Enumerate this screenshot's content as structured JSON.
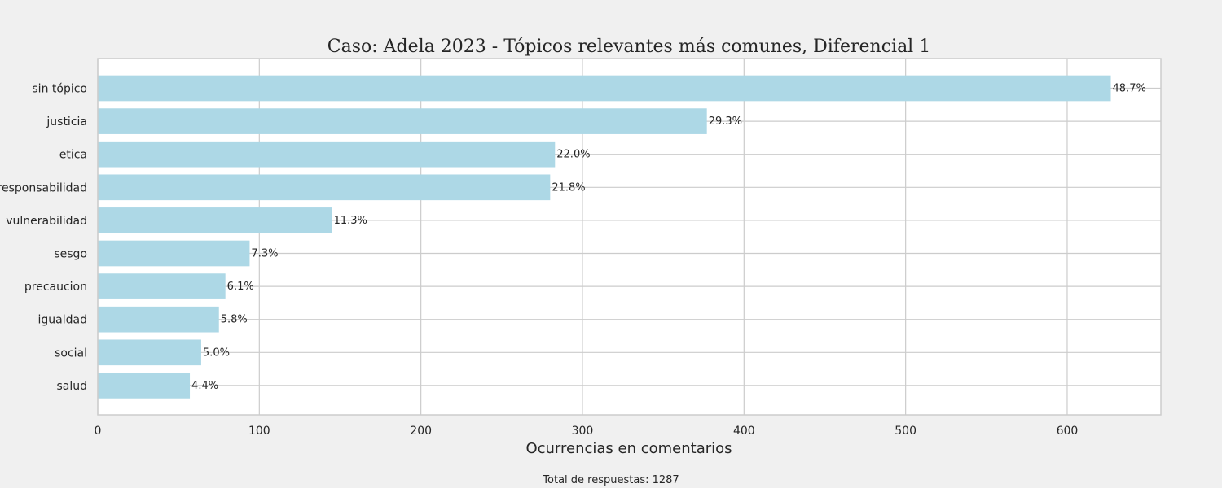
{
  "chart_data": {
    "type": "bar",
    "orientation": "horizontal",
    "title": "Caso: Adela 2023 - Tópicos relevantes más comunes, Diferencial 1",
    "xlabel": "Ocurrencias en comentarios",
    "ylabel": "",
    "xlim": [
      0,
      658
    ],
    "xticks": [
      0,
      100,
      200,
      300,
      400,
      500,
      600
    ],
    "grid": true,
    "bar_color": "#add8e6",
    "categories": [
      "sin tópico",
      "justicia",
      "etica",
      "responsabilidad",
      "vulnerabilidad",
      "sesgo",
      "precaucion",
      "igualdad",
      "social",
      "salud"
    ],
    "values": [
      627,
      377,
      283,
      280,
      145,
      94,
      79,
      75,
      64,
      57
    ],
    "data_labels": [
      "48.7%",
      "29.3%",
      "22.0%",
      "21.8%",
      "11.3%",
      "7.3%",
      "6.1%",
      "5.8%",
      "5.0%",
      "4.4%"
    ]
  },
  "footer": "Total de respuestas: 1287"
}
